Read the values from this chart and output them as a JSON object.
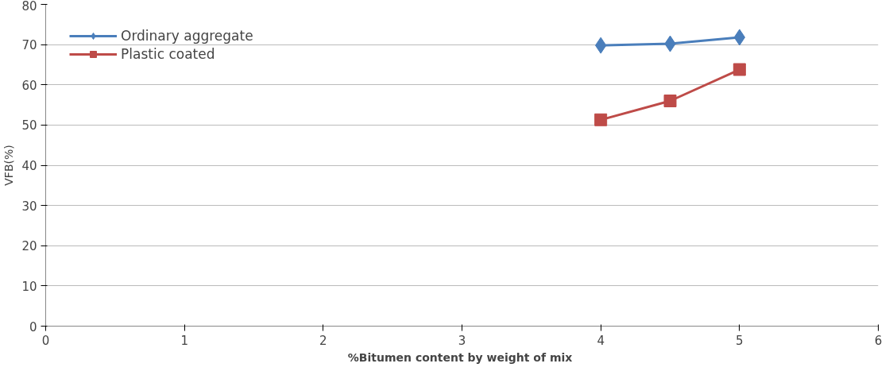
{
  "chart_data": {
    "type": "line",
    "xlabel": "%Bitumen content  by weight of mix",
    "ylabel": "VFB(%)",
    "x": [
      4,
      4.5,
      5
    ],
    "series": [
      {
        "name": "Ordinary aggregate",
        "color": "#4a7ebb",
        "values": [
          69.8,
          70.2,
          71.8
        ],
        "marker": "diamond"
      },
      {
        "name": "Plastic coated",
        "color": "#be4b48",
        "values": [
          51.3,
          56.0,
          63.8
        ],
        "marker": "square"
      }
    ],
    "xlim": [
      0,
      6
    ],
    "xticks": [
      0,
      1,
      2,
      3,
      4,
      5,
      6
    ],
    "ylim": [
      0,
      80
    ],
    "yticks": [
      0,
      10,
      20,
      30,
      40,
      50,
      60,
      70,
      80
    ],
    "grid": "y",
    "legend": "top left",
    "line_style": "solid"
  }
}
